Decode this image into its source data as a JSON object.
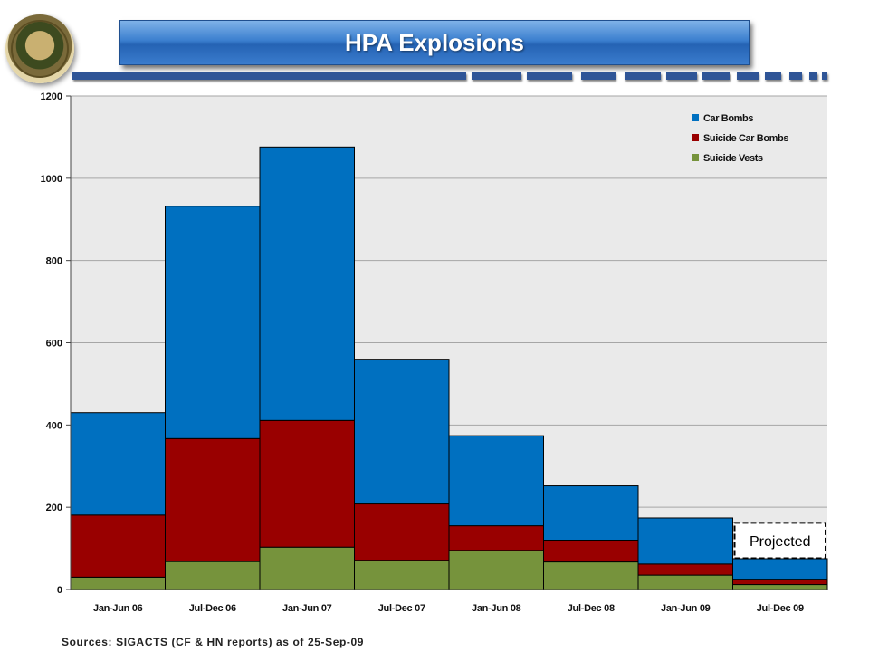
{
  "header": {
    "title": "HPA Explosions"
  },
  "footer": {
    "sources": "Sources: SIGACTS (CF & HN reports) as of 25-Sep-09"
  },
  "colors": {
    "car_bombs": "#0070c0",
    "suicide_car_bombs": "#990000",
    "suicide_vests": "#76933c",
    "plot_background": "#eaeaea",
    "banner": "#2e6fc2"
  },
  "chart_data": {
    "type": "bar",
    "stacked": true,
    "categories": [
      "Jan-Jun 06",
      "Jul-Dec 06",
      "Jan-Jun 07",
      "Jul-Dec 07",
      "Jan-Jun 08",
      "Jul-Dec 08",
      "Jan-Jun 09",
      "Jul-Dec 09"
    ],
    "series": [
      {
        "name": "Suicide Vests",
        "values": [
          30,
          68,
          103,
          71,
          95,
          67,
          35,
          12
        ],
        "color": "#76933c"
      },
      {
        "name": "Suicide Car Bombs",
        "values": [
          151,
          299,
          308,
          137,
          60,
          53,
          27,
          13
        ],
        "color": "#990000"
      },
      {
        "name": "Car Bombs",
        "values": [
          249,
          565,
          665,
          352,
          219,
          132,
          112,
          50
        ],
        "color": "#0070c0"
      }
    ],
    "legend_order": [
      "Car Bombs",
      "Suicide Car Bombs",
      "Suicide Vests"
    ],
    "legend_position": "top-right",
    "ylim": [
      0,
      1200
    ],
    "yticks": [
      0,
      200,
      400,
      600,
      800,
      1000,
      1200
    ],
    "grid": true,
    "title": "",
    "xlabel": "",
    "ylabel": "",
    "annotation": {
      "text": "Projected",
      "category": "Jul-Dec 09",
      "range": [
        76,
        162
      ]
    }
  }
}
